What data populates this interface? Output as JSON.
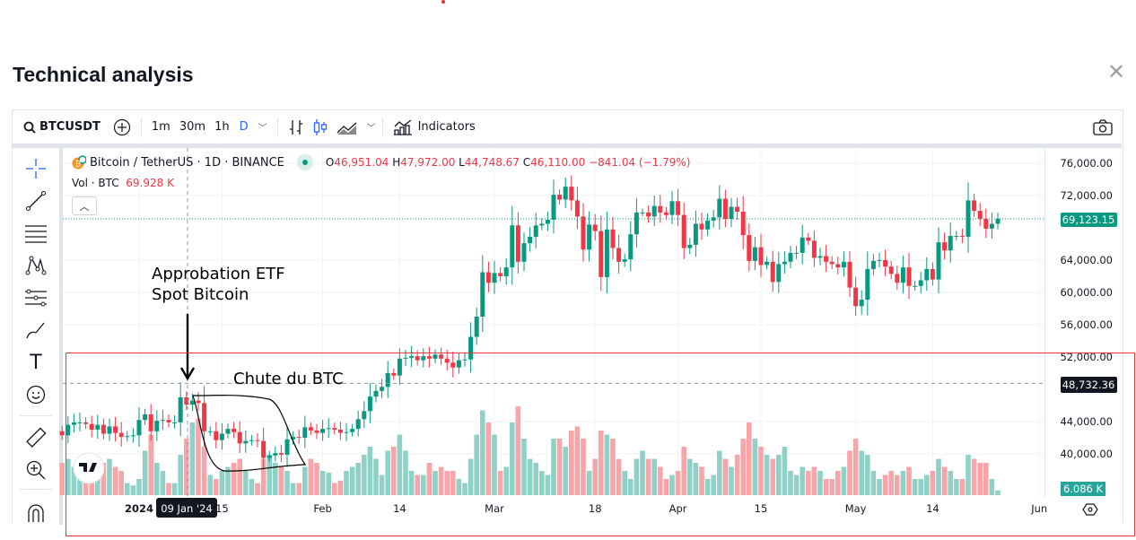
{
  "dialog": {
    "title": "Technical analysis",
    "close_icon": "close-icon"
  },
  "toolbar": {
    "symbol": "BTCUSDT",
    "intervals": [
      "1m",
      "30m",
      "1h",
      "D"
    ],
    "active_interval": "D",
    "indicators_label": "Indicators",
    "accent": "#2962ff"
  },
  "legend": {
    "name": "Bitcoin / TetherUS · 1D · BINANCE",
    "o_label": "O",
    "o": "46,951.04",
    "h_label": "H",
    "h": "47,972.00",
    "l_label": "L",
    "l": "44,748.67",
    "c_label": "C",
    "c": "46,110.00",
    "change": "−841.04 (−1.79%)",
    "vol_label": "Vol · BTC",
    "vol": "69.928 K"
  },
  "annotations": {
    "etf_line1": "Approbation ETF",
    "etf_line2": "Spot Bitcoin",
    "drop": "Chute du BTC"
  },
  "price_axis": {
    "ticks": [
      "76,000.00",
      "72,000.00",
      "64,000.00",
      "60,000.00",
      "56,000.00",
      "52,000.00",
      "44,000.00",
      "40,000.00"
    ],
    "last_price": "69,123.15",
    "crosshair_price": "48,732.36",
    "volume_last": "6.086 K"
  },
  "time_axis": {
    "ticks": [
      "2024",
      "15",
      "Feb",
      "14",
      "Mar",
      "18",
      "Apr",
      "15",
      "May",
      "14",
      "Jun"
    ],
    "crosshair_date": "09 Jan '24"
  },
  "colors": {
    "up": "#089981",
    "down": "#f23645",
    "vol_up": "#8fd1c7",
    "vol_down": "#f7a5a9",
    "last_price": "#089981",
    "crosshair_label": "#131722",
    "annotation_box": "#e53935"
  },
  "chart_data": {
    "type": "candlestick",
    "title": "Bitcoin / TetherUS · 1D · BINANCE",
    "first_date": "2023-12-19",
    "ylim": [
      38000,
      77000
    ],
    "crosshair": {
      "date": "2024-01-09",
      "price": 48732.36
    },
    "closes": [
      42300,
      43600,
      43900,
      43900,
      43700,
      43000,
      43600,
      42500,
      43400,
      42600,
      42100,
      42200,
      42300,
      44200,
      44900,
      42800,
      44100,
      44200,
      43900,
      43900,
      47000,
      46110,
      46600,
      46300,
      42800,
      42800,
      41700,
      42500,
      43100,
      42700,
      41300,
      41600,
      41700,
      41600,
      39500,
      39800,
      40100,
      39900,
      41800,
      42100,
      42000,
      43300,
      42900,
      42600,
      43100,
      43200,
      43000,
      42600,
      42700,
      43100,
      44300,
      45300,
      47100,
      47800,
      48300,
      50000,
      49700,
      51800,
      51900,
      52100,
      51600,
      52100,
      51800,
      52300,
      51800,
      51300,
      50700,
      51600,
      51700,
      54500,
      57000,
      62500,
      61200,
      62400,
      62000,
      63100,
      68300,
      63800,
      66100,
      66900,
      68300,
      68500,
      69000,
      72100,
      71500,
      73100,
      71400,
      69400,
      65300,
      68400,
      67600,
      61900,
      67800,
      65500,
      63800,
      64100,
      67200,
      69900,
      69900,
      69400,
      70700,
      69900,
      69600,
      71300,
      69600,
      65500,
      65900,
      68500,
      67800,
      68900,
      69300,
      71600,
      69100,
      70600,
      70000,
      67100,
      63900,
      65600,
      63400,
      63800,
      61300,
      63500,
      63800,
      64900,
      64900,
      66800,
      66400,
      64300,
      64500,
      63800,
      63500,
      63100,
      63800,
      60600,
      58300,
      59100,
      62900,
      63900,
      64000,
      63200,
      62300,
      61200,
      63100,
      60800,
      60800,
      61500,
      62900,
      61600,
      66200,
      65200,
      67000,
      67000,
      66900,
      71400,
      70100,
      69100,
      67900,
      68500,
      69123.15
    ],
    "volumes_k": [
      40,
      45,
      35,
      30,
      15,
      15,
      25,
      40,
      45,
      35,
      30,
      15,
      12,
      20,
      55,
      75,
      40,
      30,
      15,
      15,
      50,
      70,
      90,
      95,
      60,
      25,
      20,
      30,
      35,
      40,
      45,
      30,
      20,
      15,
      45,
      50,
      40,
      35,
      30,
      15,
      15,
      35,
      45,
      40,
      30,
      28,
      15,
      18,
      30,
      35,
      40,
      50,
      60,
      45,
      25,
      55,
      60,
      75,
      55,
      30,
      25,
      25,
      40,
      30,
      35,
      30,
      30,
      20,
      15,
      45,
      75,
      105,
      90,
      75,
      30,
      35,
      90,
      110,
      70,
      45,
      40,
      30,
      25,
      70,
      70,
      60,
      80,
      85,
      70,
      30,
      45,
      80,
      75,
      70,
      45,
      30,
      20,
      45,
      55,
      45,
      45,
      35,
      20,
      25,
      30,
      60,
      45,
      40,
      35,
      20,
      25,
      55,
      45,
      35,
      50,
      70,
      90,
      70,
      60,
      50,
      45,
      50,
      60,
      30,
      25,
      35,
      30,
      35,
      30,
      20,
      20,
      30,
      35,
      55,
      70,
      55,
      50,
      30,
      20,
      25,
      30,
      25,
      30,
      35,
      20,
      20,
      25,
      30,
      45,
      35,
      30,
      20,
      20,
      50,
      45,
      40,
      40,
      20,
      6.086
    ]
  }
}
